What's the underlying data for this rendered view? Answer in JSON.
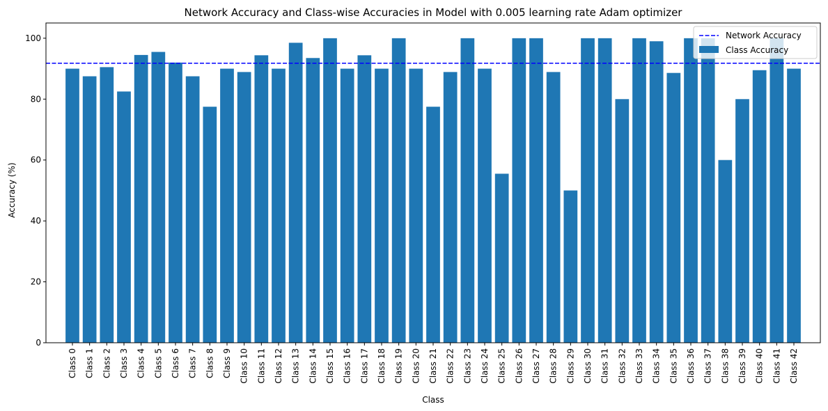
{
  "chart_data": {
    "type": "bar",
    "title": "Network Accuracy and Class-wise Accuracies in Model with 0.005 learning rate Adam optimizer",
    "xlabel": "Class",
    "ylabel": "Accuracy (%)",
    "ylim": [
      0,
      105
    ],
    "yticks": [
      "0",
      "20",
      "40",
      "60",
      "80",
      "100"
    ],
    "grid": false,
    "legend_position": "top-right",
    "categories": [
      "Class 0",
      "Class 1",
      "Class 2",
      "Class 3",
      "Class 4",
      "Class 5",
      "Class 6",
      "Class 7",
      "Class 8",
      "Class 9",
      "Class 10",
      "Class 11",
      "Class 12",
      "Class 13",
      "Class 14",
      "Class 15",
      "Class 16",
      "Class 17",
      "Class 18",
      "Class 19",
      "Class 20",
      "Class 21",
      "Class 22",
      "Class 23",
      "Class 24",
      "Class 25",
      "Class 26",
      "Class 27",
      "Class 28",
      "Class 29",
      "Class 30",
      "Class 31",
      "Class 32",
      "Class 33",
      "Class 34",
      "Class 35",
      "Class 36",
      "Class 37",
      "Class 38",
      "Class 39",
      "Class 40",
      "Class 41",
      "Class 42"
    ],
    "series": [
      {
        "name": "Class Accuracy",
        "color": "#1f77b4",
        "values": [
          90,
          87.5,
          90.5,
          82.5,
          94.5,
          95.5,
          92,
          87.5,
          77.5,
          90,
          88.9,
          94.4,
          90,
          98.5,
          93.5,
          100,
          90,
          94.4,
          90,
          100,
          90,
          77.5,
          88.9,
          100,
          90,
          55.5,
          100,
          100,
          88.9,
          50,
          100,
          100,
          80,
          100,
          99,
          88.6,
          100,
          100,
          60,
          80,
          89.5,
          100,
          90
        ]
      }
    ],
    "reference_line": {
      "name": "Network Accuracy",
      "value": 91.8,
      "color": "#0000ff",
      "style": "dashed"
    }
  }
}
